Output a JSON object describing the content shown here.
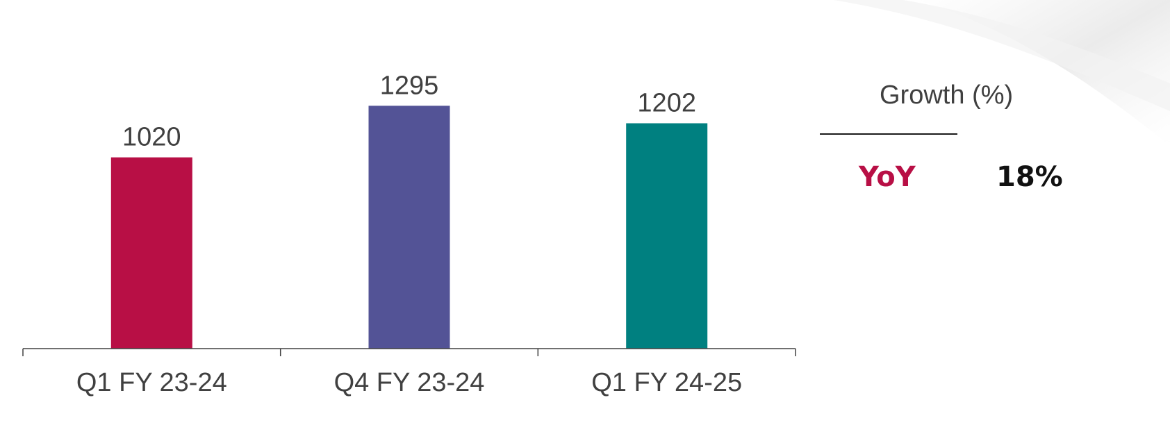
{
  "chart_data": {
    "type": "bar",
    "categories": [
      "Q1 FY 23-24",
      "Q4 FY 23-24",
      "Q1 FY 24-25"
    ],
    "values": [
      1020,
      1295,
      1202
    ],
    "colors": [
      "#b80f45",
      "#535396",
      "#008080"
    ],
    "data_labels": [
      "1020",
      "1295",
      "1202"
    ],
    "ylim": [
      0,
      1400
    ],
    "grid": false,
    "title": "",
    "xlabel": "",
    "ylabel": ""
  },
  "growth": {
    "title": "Growth (%)",
    "rows": [
      {
        "label": "YoY",
        "value": "18%",
        "label_color": "#b80f45"
      }
    ]
  }
}
